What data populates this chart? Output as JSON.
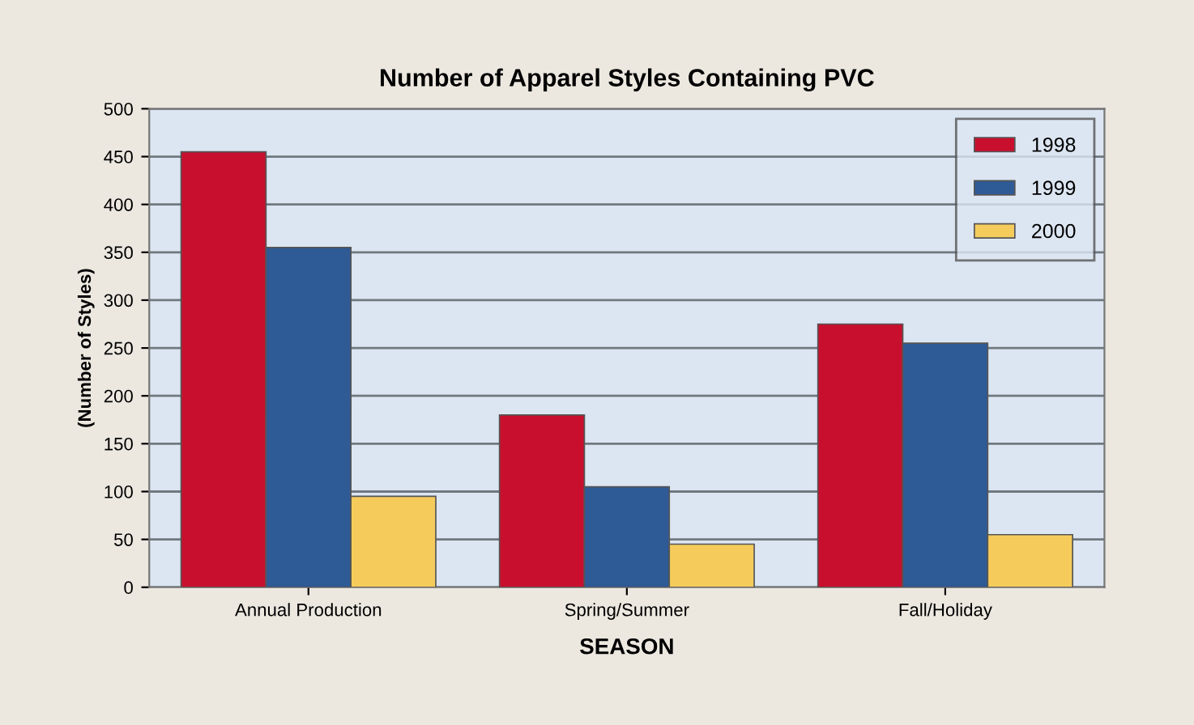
{
  "chart_data": {
    "type": "bar",
    "title": "Number of Apparel Styles Containing PVC",
    "xlabel": "SEASON",
    "ylabel": "(Number of Styles)",
    "categories": [
      "Annual Production",
      "Spring/Summer",
      "Fall/Holiday"
    ],
    "series": [
      {
        "name": "1998",
        "color": "#c8102e",
        "values": [
          455,
          180,
          275
        ]
      },
      {
        "name": "1999",
        "color": "#2e5a96",
        "values": [
          355,
          105,
          255
        ]
      },
      {
        "name": "2000",
        "color": "#f5cc5c",
        "values": [
          95,
          45,
          55
        ]
      }
    ],
    "ylim": [
      0,
      500
    ],
    "yticks": [
      0,
      50,
      100,
      150,
      200,
      250,
      300,
      350,
      400,
      450,
      500
    ],
    "grid": "y",
    "legend": "top right"
  }
}
